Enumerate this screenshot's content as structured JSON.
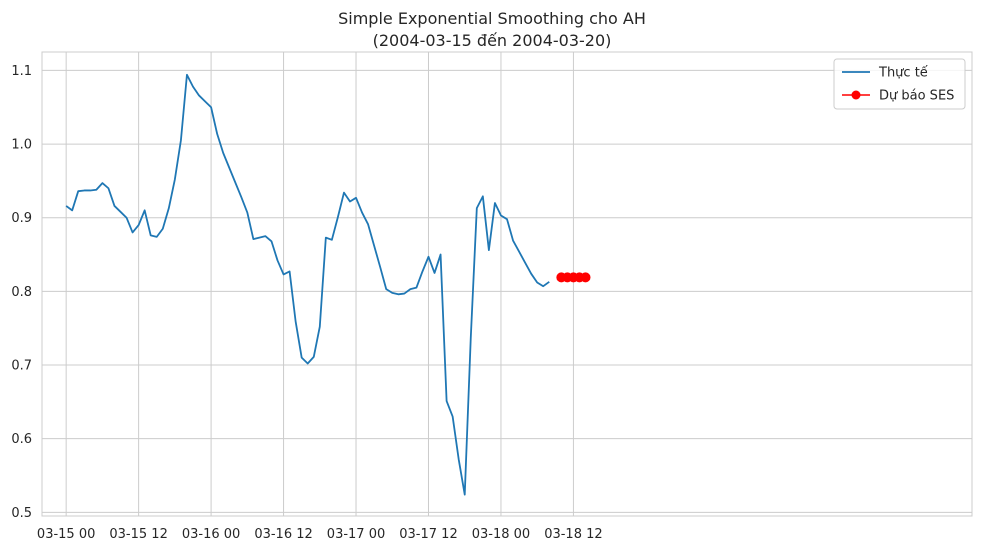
{
  "chart_data": {
    "type": "line",
    "title": "Simple Exponential Smoothing cho AH",
    "subtitle": "(2004-03-15 đến 2004-03-20)",
    "xlabel": "",
    "ylabel": "",
    "x_unit": "hours",
    "xlim": [
      -4,
      150
    ],
    "ylim": [
      0.495,
      1.125
    ],
    "grid": true,
    "legend_placement": "top-right",
    "x_ticks": [
      {
        "value": 0,
        "label": "03-15 00"
      },
      {
        "value": 12,
        "label": "03-15 12"
      },
      {
        "value": 24,
        "label": "03-16 00"
      },
      {
        "value": 36,
        "label": "03-16 12"
      },
      {
        "value": 48,
        "label": "03-17 00"
      },
      {
        "value": 60,
        "label": "03-17 12"
      },
      {
        "value": 72,
        "label": "03-18 00"
      },
      {
        "value": 84,
        "label": "03-18 12"
      }
    ],
    "y_ticks": [
      {
        "value": 0.5,
        "label": "0.5"
      },
      {
        "value": 0.6,
        "label": "0.6"
      },
      {
        "value": 0.7,
        "label": "0.7"
      },
      {
        "value": 0.8,
        "label": "0.8"
      },
      {
        "value": 0.9,
        "label": "0.9"
      },
      {
        "value": 1.0,
        "label": "1.0"
      },
      {
        "value": 1.1,
        "label": "1.1"
      }
    ],
    "series": [
      {
        "name": "Thực tế",
        "color": "#1f77b4",
        "marker": "none",
        "x": [
          0,
          1,
          2,
          3,
          4,
          5,
          6,
          7,
          8,
          9,
          10,
          11,
          12,
          13,
          14,
          15,
          16,
          17,
          18,
          19,
          20,
          21,
          22,
          23,
          24,
          25,
          26,
          27,
          28,
          29,
          30,
          31,
          32,
          33,
          34,
          35,
          36,
          37,
          38,
          39,
          40,
          41,
          42,
          43,
          44,
          45,
          46,
          47,
          48,
          49,
          50,
          51,
          52,
          53,
          54,
          55,
          56,
          57,
          58,
          59,
          60,
          61,
          62,
          63,
          64,
          65,
          66,
          67,
          68,
          69,
          70,
          71,
          72,
          73,
          74,
          75,
          76,
          77,
          78,
          79,
          80
        ],
        "y": [
          0.916,
          0.91,
          0.936,
          0.937,
          0.937,
          0.938,
          0.947,
          0.94,
          0.916,
          0.908,
          0.9,
          0.88,
          0.89,
          0.91,
          0.876,
          0.874,
          0.885,
          0.913,
          0.952,
          1.005,
          1.094,
          1.078,
          1.066,
          1.058,
          1.05,
          1.014,
          0.988,
          0.968,
          0.948,
          0.928,
          0.907,
          0.871,
          0.873,
          0.875,
          0.868,
          0.842,
          0.823,
          0.827,
          0.759,
          0.71,
          0.702,
          0.711,
          0.752,
          0.873,
          0.87,
          0.901,
          0.934,
          0.922,
          0.927,
          0.907,
          0.891,
          0.862,
          0.833,
          0.803,
          0.798,
          0.796,
          0.797,
          0.803,
          0.805,
          0.827,
          0.847,
          0.825,
          0.85,
          0.651,
          0.63,
          0.572,
          0.524,
          0.737,
          0.913,
          0.929,
          0.856,
          0.92,
          0.903,
          0.898,
          0.869,
          0.854,
          0.839,
          0.824,
          0.812,
          0.807,
          0.813
        ]
      },
      {
        "name": "Dự báo SES",
        "color": "#ff0000",
        "marker": "circle",
        "x": [
          82,
          83,
          84,
          85,
          86
        ],
        "y": [
          0.819,
          0.819,
          0.819,
          0.819,
          0.819
        ]
      }
    ]
  }
}
